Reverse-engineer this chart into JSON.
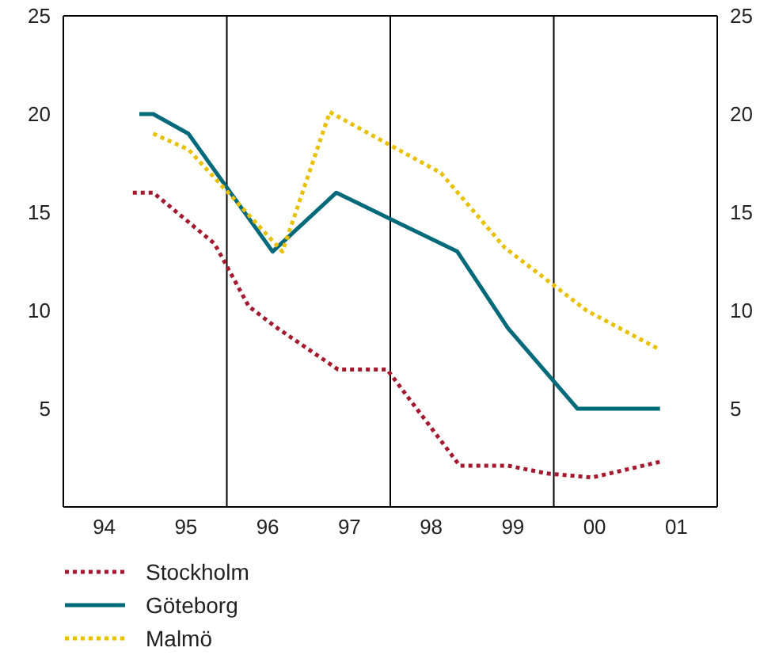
{
  "chart_data": {
    "type": "line",
    "xlim": [
      1993.5,
      2001.5
    ],
    "xticks": [
      {
        "value": 1994,
        "label": "94"
      },
      {
        "value": 1995,
        "label": "95"
      },
      {
        "value": 1995.5,
        "label": null
      },
      {
        "value": 1996,
        "label": "96"
      },
      {
        "value": 1997,
        "label": "97"
      },
      {
        "value": 1997.5,
        "label": null
      },
      {
        "value": 1998,
        "label": "98"
      },
      {
        "value": 1999,
        "label": "99"
      },
      {
        "value": 1999.5,
        "label": null
      },
      {
        "value": 2000,
        "label": "00"
      },
      {
        "value": 2001,
        "label": "01"
      }
    ],
    "ylim": [
      0,
      25
    ],
    "yticks": [
      5,
      10,
      15,
      20,
      25
    ],
    "y2lim": [
      0,
      25
    ],
    "y2ticks": [
      5,
      10,
      15,
      20,
      25
    ],
    "grid": true,
    "legend": "bottom",
    "series": [
      {
        "name": "Stockholm",
        "color": "#a5192f",
        "line_style": "dotted",
        "x": [
          1994.35,
          1994.6,
          1995.35,
          1995.77,
          1996.12,
          1996.86,
          1997.46,
          1998.35,
          1998.94,
          1999.42,
          1999.97,
          2000.8
        ],
        "values": [
          16,
          16,
          13.4,
          10.2,
          9.1,
          7,
          7,
          2.1,
          2.1,
          1.7,
          1.5,
          2.3
        ]
      },
      {
        "name": "Göteborg",
        "color": "#006a7a",
        "line_style": "solid",
        "x": [
          1994.43,
          1994.6,
          1995.03,
          1996.06,
          1996.84,
          1998.32,
          1998.94,
          1999.79,
          2000.8
        ],
        "values": [
          20,
          20,
          19,
          13,
          16,
          13,
          9.1,
          5,
          5
        ]
      },
      {
        "name": "Malmö",
        "color": "#e8c000",
        "line_style": "dotted",
        "x": [
          1994.6,
          1995.03,
          1996.18,
          1996.76,
          1998.12,
          1998.9,
          1999.9,
          2000.8
        ],
        "values": [
          19,
          18.2,
          13,
          20.1,
          17,
          13.2,
          10,
          8
        ]
      }
    ]
  }
}
